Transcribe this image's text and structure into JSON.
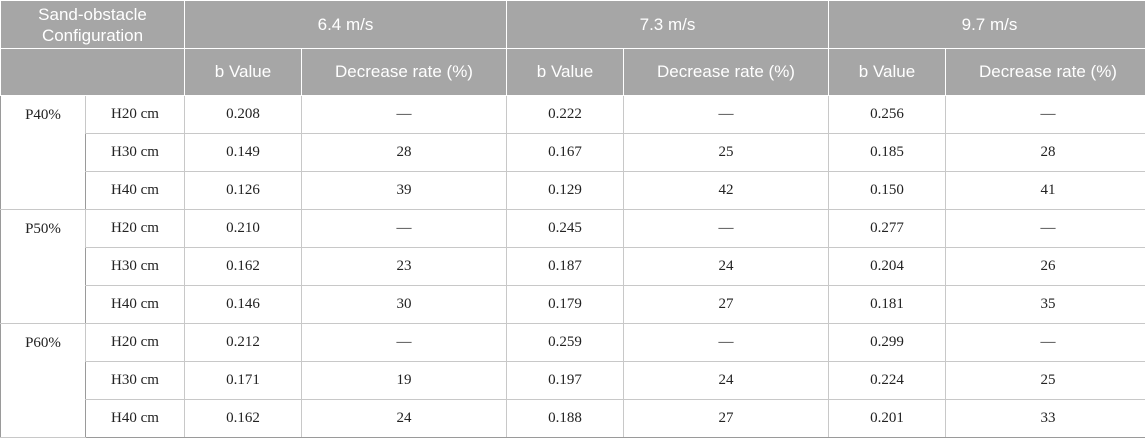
{
  "header": {
    "config_label": "Sand-obstacle Configuration",
    "speeds": [
      "6.4 m/s",
      "7.3 m/s",
      "9.7 m/s"
    ],
    "b_value_label": "b Value",
    "decrease_label": "Decrease rate (%)"
  },
  "groups": [
    {
      "label": "P40%",
      "rows": [
        {
          "height": "H20 cm",
          "cells": [
            "0.208",
            "—",
            "0.222",
            "—",
            "0.256",
            "—"
          ]
        },
        {
          "height": "H30 cm",
          "cells": [
            "0.149",
            "28",
            "0.167",
            "25",
            "0.185",
            "28"
          ]
        },
        {
          "height": "H40 cm",
          "cells": [
            "0.126",
            "39",
            "0.129",
            "42",
            "0.150",
            "41"
          ]
        }
      ]
    },
    {
      "label": "P50%",
      "rows": [
        {
          "height": "H20 cm",
          "cells": [
            "0.210",
            "—",
            "0.245",
            "—",
            "0.277",
            "—"
          ]
        },
        {
          "height": "H30 cm",
          "cells": [
            "0.162",
            "23",
            "0.187",
            "24",
            "0.204",
            "26"
          ]
        },
        {
          "height": "H40 cm",
          "cells": [
            "0.146",
            "30",
            "0.179",
            "27",
            "0.181",
            "35"
          ]
        }
      ]
    },
    {
      "label": "P60%",
      "rows": [
        {
          "height": "H20 cm",
          "cells": [
            "0.212",
            "—",
            "0.259",
            "—",
            "0.299",
            "—"
          ]
        },
        {
          "height": "H30 cm",
          "cells": [
            "0.171",
            "19",
            "0.197",
            "24",
            "0.224",
            "25"
          ]
        },
        {
          "height": "H40 cm",
          "cells": [
            "0.162",
            "24",
            "0.188",
            "27",
            "0.201",
            "33"
          ]
        }
      ]
    }
  ]
}
